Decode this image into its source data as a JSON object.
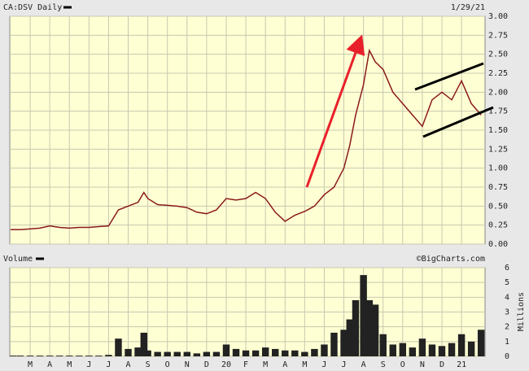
{
  "chart_data": [
    {
      "type": "line",
      "title": "CA:DSV Daily",
      "date_label": "1/29/21",
      "color": "#8b1a1a",
      "x": [
        -1,
        -0.5,
        0,
        0.5,
        1,
        1.5,
        2,
        2.5,
        3,
        3.5,
        4,
        4.5,
        5,
        5.5,
        5.8,
        6,
        6.5,
        7,
        7.5,
        8,
        8.5,
        9,
        9.5,
        10,
        10.5,
        11,
        11.5,
        12,
        12.5,
        13,
        13.5,
        14,
        14.5,
        15,
        15.5,
        16,
        16.3,
        16.6,
        17,
        17.3,
        17.6,
        18,
        18.5,
        19,
        19.5,
        20,
        20.5,
        21,
        21.5,
        22,
        22.5,
        23
      ],
      "values": [
        0.19,
        0.19,
        0.2,
        0.21,
        0.24,
        0.22,
        0.21,
        0.22,
        0.22,
        0.23,
        0.24,
        0.45,
        0.5,
        0.55,
        0.68,
        0.6,
        0.52,
        0.51,
        0.5,
        0.48,
        0.42,
        0.4,
        0.45,
        0.6,
        0.58,
        0.6,
        0.68,
        0.6,
        0.42,
        0.3,
        0.38,
        0.43,
        0.5,
        0.65,
        0.75,
        1.0,
        1.3,
        1.7,
        2.1,
        2.55,
        2.4,
        2.3,
        2.0,
        1.85,
        1.7,
        1.55,
        1.9,
        2.0,
        1.9,
        2.15,
        1.85,
        1.7
      ],
      "xlim": [
        -1.04,
        23.2
      ],
      "xticks": [
        {
          "value": 0,
          "label": "M"
        },
        {
          "value": 1,
          "label": "A"
        },
        {
          "value": 2,
          "label": "M"
        },
        {
          "value": 3,
          "label": "J"
        },
        {
          "value": 4,
          "label": "J"
        },
        {
          "value": 5,
          "label": "A"
        },
        {
          "value": 6,
          "label": "S"
        },
        {
          "value": 7,
          "label": "O"
        },
        {
          "value": 8,
          "label": "N"
        },
        {
          "value": 9,
          "label": "D"
        },
        {
          "value": 10,
          "label": "20"
        },
        {
          "value": 11,
          "label": "F"
        },
        {
          "value": 12,
          "label": "M"
        },
        {
          "value": 13,
          "label": "A"
        },
        {
          "value": 14,
          "label": "M"
        },
        {
          "value": 15,
          "label": "J"
        },
        {
          "value": 16,
          "label": "J"
        },
        {
          "value": 17,
          "label": "A"
        },
        {
          "value": 18,
          "label": "S"
        },
        {
          "value": 19,
          "label": "O"
        },
        {
          "value": 20,
          "label": "N"
        },
        {
          "value": 21,
          "label": "D"
        },
        {
          "value": 22,
          "label": "21"
        }
      ],
      "ylim": [
        0,
        3
      ],
      "yticks": [
        {
          "value": 0,
          "label": "0.00"
        },
        {
          "value": 0.25,
          "label": "0.25"
        },
        {
          "value": 0.5,
          "label": "0.50"
        },
        {
          "value": 0.75,
          "label": "0.75"
        },
        {
          "value": 1,
          "label": "1.00"
        },
        {
          "value": 1.25,
          "label": "1.25"
        },
        {
          "value": 1.5,
          "label": "1.50"
        },
        {
          "value": 1.75,
          "label": "1.75"
        },
        {
          "value": 2,
          "label": "2.00"
        },
        {
          "value": 2.25,
          "label": "2.25"
        },
        {
          "value": 2.5,
          "label": "2.50"
        },
        {
          "value": 2.75,
          "label": "2.75"
        },
        {
          "value": 3,
          "label": "3.00"
        }
      ],
      "grid": true
    },
    {
      "type": "bar",
      "title": "Volume",
      "credit": "©BigCharts.com",
      "ylabel": "Millions",
      "color": "#222222",
      "x": [
        -1,
        -0.5,
        0,
        0.5,
        1,
        1.5,
        2,
        2.5,
        3,
        3.5,
        4,
        4.5,
        5,
        5.5,
        5.8,
        6,
        6.5,
        7,
        7.5,
        8,
        8.5,
        9,
        9.5,
        10,
        10.5,
        11,
        11.5,
        12,
        12.5,
        13,
        13.5,
        14,
        14.5,
        15,
        15.5,
        16,
        16.3,
        16.6,
        17,
        17.3,
        17.6,
        18,
        18.5,
        19,
        19.5,
        20,
        20.5,
        21,
        21.5,
        22,
        22.5,
        23
      ],
      "values": [
        0.05,
        0.05,
        0.05,
        0.05,
        0.05,
        0.05,
        0.05,
        0.05,
        0.05,
        0.05,
        0.1,
        1.2,
        0.5,
        0.6,
        1.6,
        0.4,
        0.3,
        0.3,
        0.3,
        0.3,
        0.2,
        0.3,
        0.3,
        0.8,
        0.5,
        0.4,
        0.4,
        0.6,
        0.5,
        0.4,
        0.4,
        0.3,
        0.5,
        0.8,
        1.6,
        1.8,
        2.5,
        3.8,
        5.5,
        3.8,
        3.5,
        1.5,
        0.8,
        0.9,
        0.6,
        1.2,
        0.8,
        0.7,
        0.9,
        1.5,
        1.0,
        1.8
      ],
      "xlim": [
        -1.04,
        23.2
      ],
      "ylim": [
        0,
        6
      ],
      "yticks": [
        0,
        1,
        2,
        3,
        4,
        5,
        6
      ],
      "grid": true
    }
  ]
}
